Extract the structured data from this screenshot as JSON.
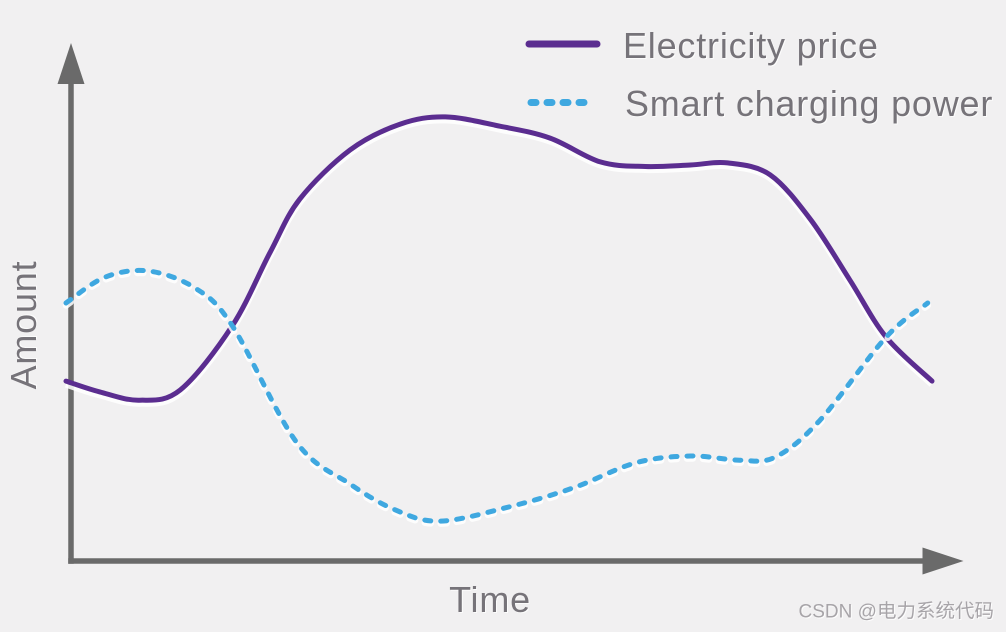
{
  "page": {
    "background": "#f1f0f1"
  },
  "watermark": {
    "text": "CSDN @电力系统代码",
    "prefix": "CSDN @",
    "color": "#a7a4a8"
  },
  "chart_data": {
    "type": "line",
    "title": "",
    "xlabel": "Time",
    "ylabel": "Amount",
    "xlim": [
      0,
      100
    ],
    "ylim": [
      0,
      100
    ],
    "x_ticks": [],
    "y_ticks": [],
    "grid": false,
    "axes_arrows": true,
    "axis_color": "#6a6a6a",
    "label_color": "#767379",
    "legend_position": "top-right",
    "series": [
      {
        "name": "Electricity price",
        "color": "#5b2d90",
        "line_style": "solid",
        "points": [
          [
            0,
            34.8
          ],
          [
            3.9,
            32.7
          ],
          [
            8.5,
            31.1
          ],
          [
            13.2,
            33.1
          ],
          [
            19.2,
            45.5
          ],
          [
            23.6,
            59.8
          ],
          [
            27.0,
            70.0
          ],
          [
            32.8,
            79.5
          ],
          [
            38.6,
            84.5
          ],
          [
            43.8,
            85.9
          ],
          [
            50.1,
            84.1
          ],
          [
            55.9,
            81.8
          ],
          [
            61.7,
            77.2
          ],
          [
            66.9,
            76.3
          ],
          [
            72.1,
            76.6
          ],
          [
            76.4,
            77.0
          ],
          [
            81.3,
            74.7
          ],
          [
            86.0,
            66.0
          ],
          [
            90.5,
            54.4
          ],
          [
            94.7,
            43.3
          ],
          [
            100,
            34.8
          ]
        ]
      },
      {
        "name": "Smart charging power",
        "color": "#3fa8e0",
        "line_style": "dashed",
        "points": [
          [
            0,
            49.9
          ],
          [
            4.5,
            54.9
          ],
          [
            9.5,
            56.1
          ],
          [
            14.9,
            52.8
          ],
          [
            19.2,
            45.5
          ],
          [
            26.6,
            23.0
          ],
          [
            32.8,
            14.9
          ],
          [
            38.0,
            9.9
          ],
          [
            43.1,
            7.7
          ],
          [
            50.8,
            10.3
          ],
          [
            58.5,
            14.1
          ],
          [
            65.8,
            19.0
          ],
          [
            72.1,
            20.3
          ],
          [
            77.8,
            19.5
          ],
          [
            81.9,
            20.1
          ],
          [
            87.0,
            27.1
          ],
          [
            94.7,
            43.3
          ],
          [
            99.5,
            49.9
          ]
        ]
      }
    ]
  }
}
